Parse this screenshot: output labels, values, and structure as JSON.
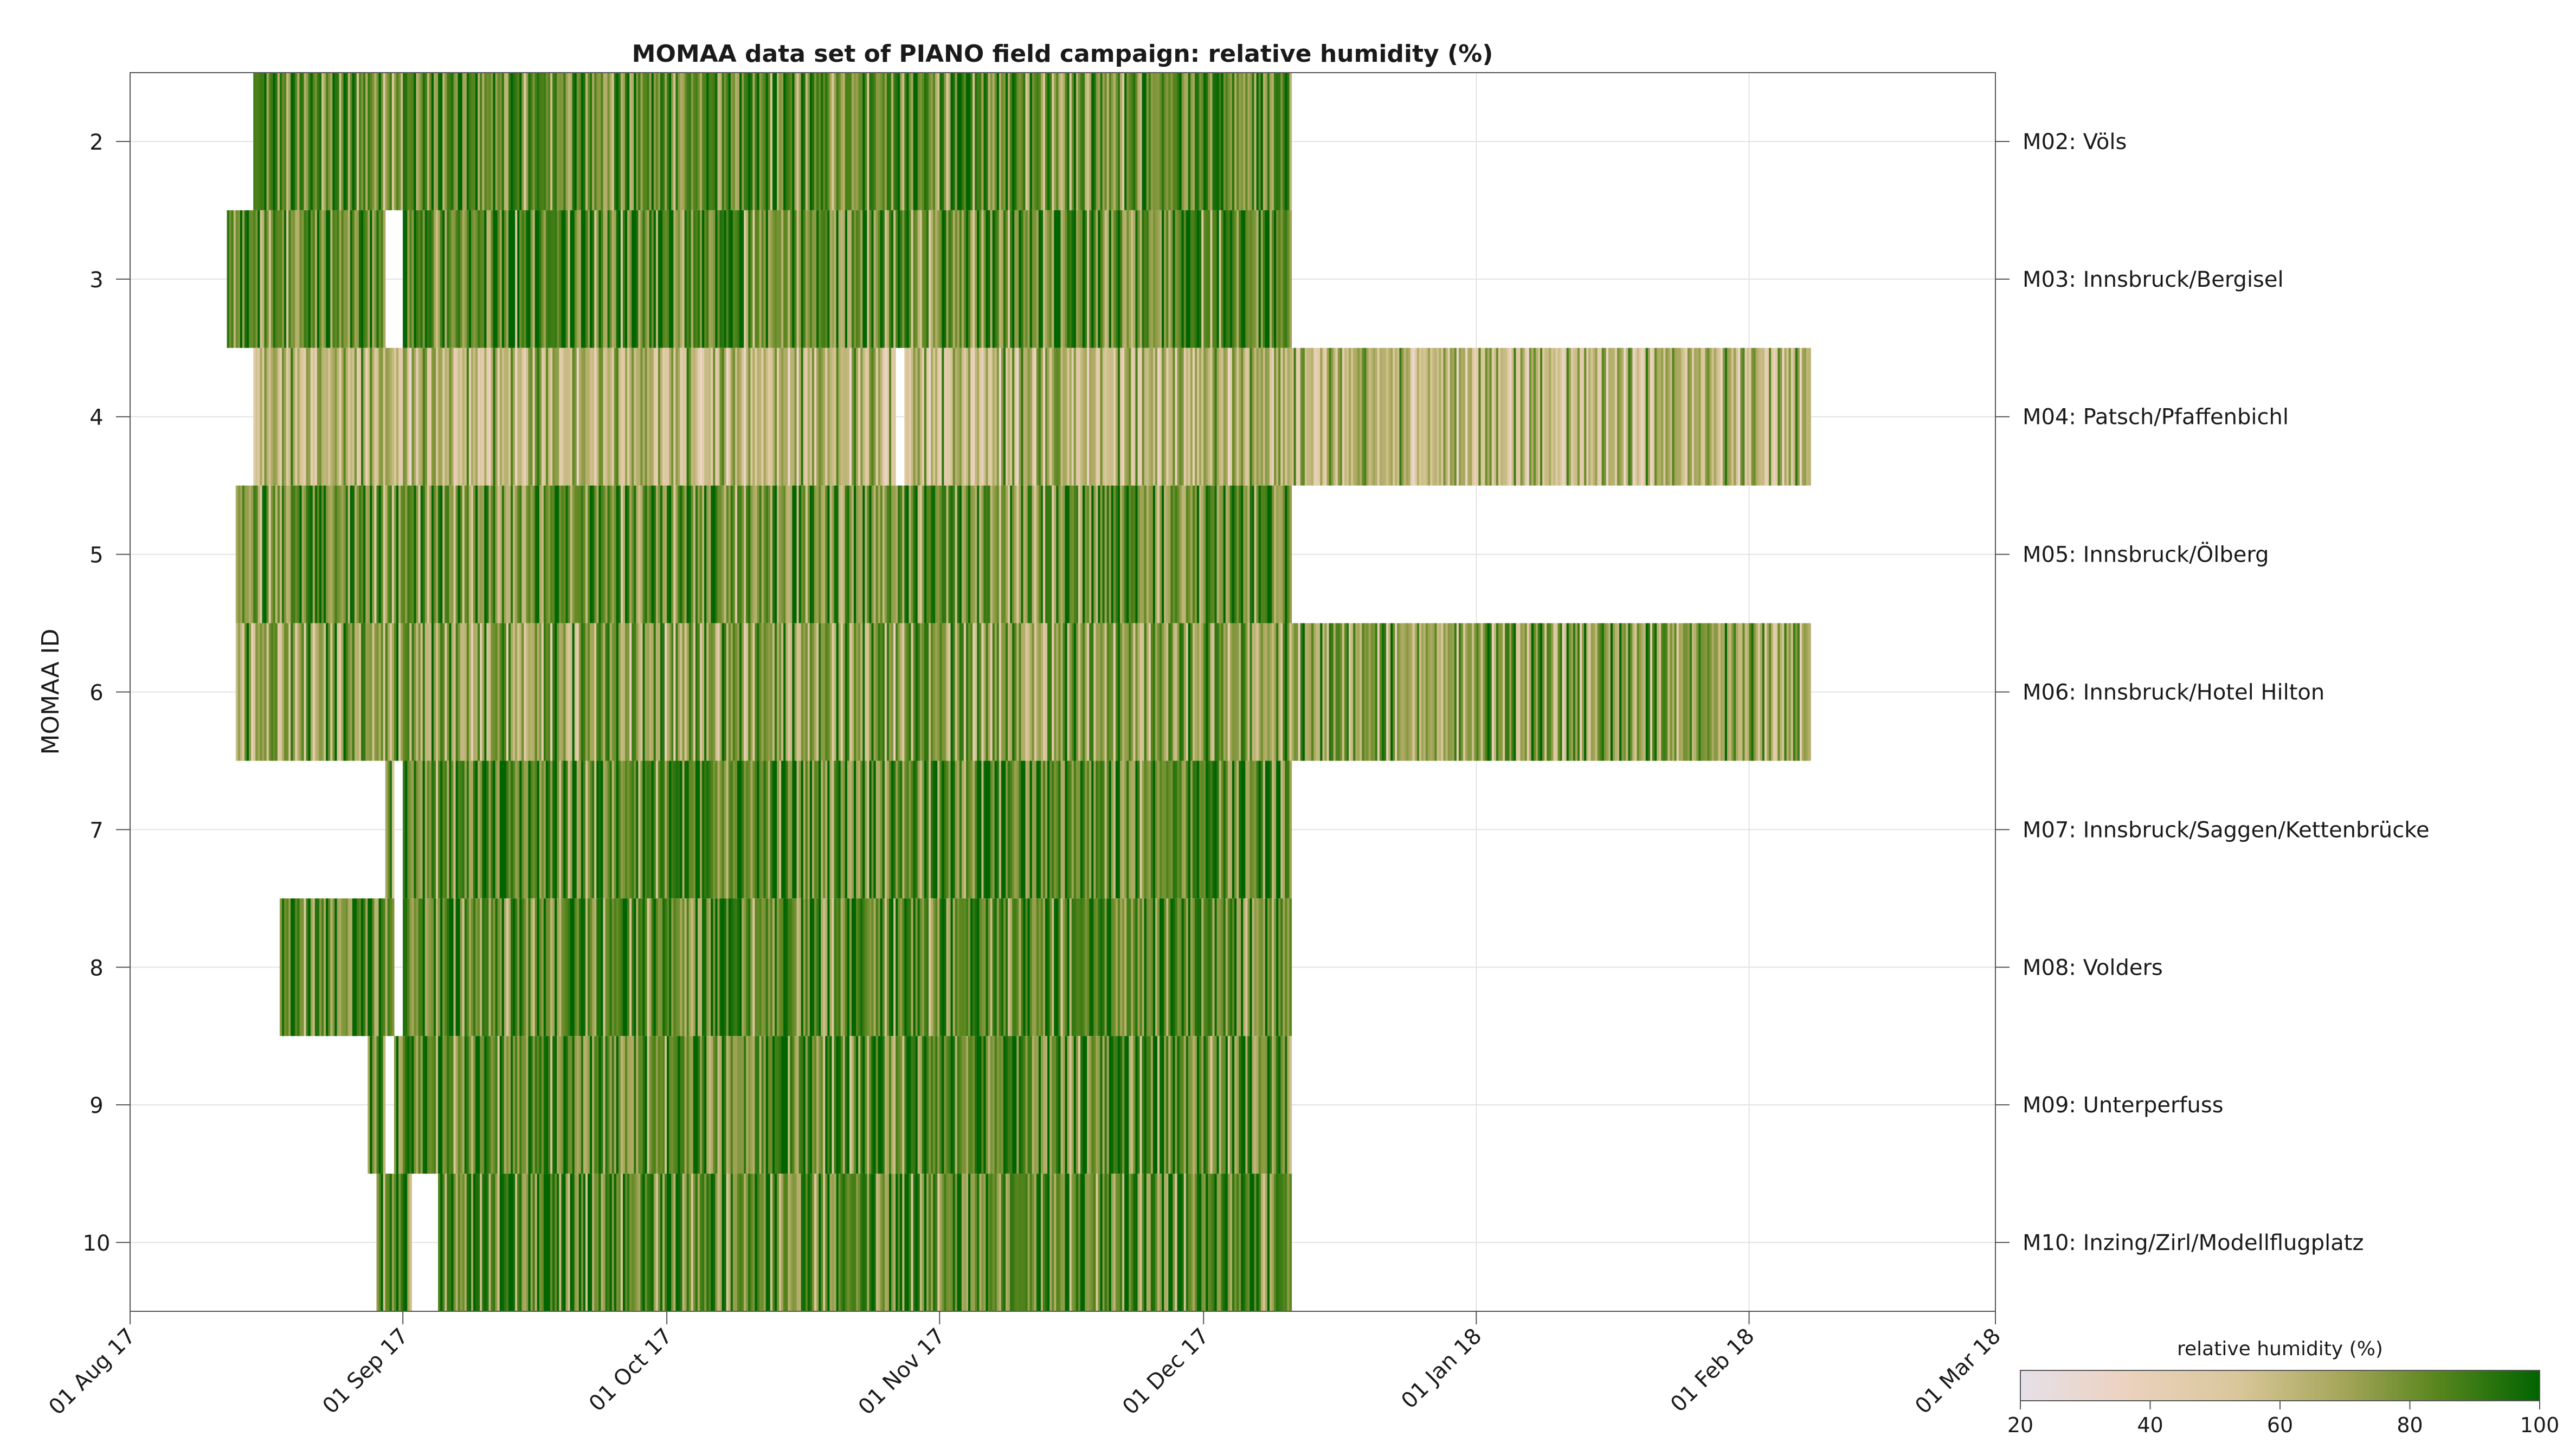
{
  "chart_data": {
    "type": "heatmap",
    "title": "MOMAA data set of PIANO field campaign: relative humidity (%)",
    "ylabel": "MOMAA ID",
    "xlabel": "",
    "x_range": [
      "2017-08-01",
      "2018-03-01"
    ],
    "x_ticks": [
      {
        "date": "2017-08-01",
        "label": "01 Aug 17"
      },
      {
        "date": "2017-09-01",
        "label": "01 Sep 17"
      },
      {
        "date": "2017-10-01",
        "label": "01 Oct 17"
      },
      {
        "date": "2017-11-01",
        "label": "01 Nov 17"
      },
      {
        "date": "2017-12-01",
        "label": "01 Dec 17"
      },
      {
        "date": "2018-01-01",
        "label": "01 Jan 18"
      },
      {
        "date": "2018-02-01",
        "label": "01 Feb 18"
      },
      {
        "date": "2018-03-01",
        "label": "01 Mar 18"
      }
    ],
    "y_ticks": [
      2,
      3,
      4,
      5,
      6,
      7,
      8,
      9,
      10
    ],
    "y_range": [
      1.5,
      10.5
    ],
    "grid": true,
    "colorbar": {
      "label": "relative humidity (%)",
      "min": 20,
      "max": 100,
      "ticks": [
        20,
        40,
        60,
        80,
        100
      ],
      "colors": [
        "#e6e0e8",
        "#ecd2c0",
        "#d9c79a",
        "#a5a65a",
        "#5a861e",
        "#006400"
      ]
    },
    "stations": [
      {
        "id": 2,
        "name": "M02: Völs",
        "start": "2017-08-15",
        "end": "2017-12-11",
        "base_rh": 82,
        "gaps": []
      },
      {
        "id": 3,
        "name": "M03: Innsbruck/Bergisel",
        "start": "2017-08-12",
        "end": "2017-12-11",
        "base_rh": 83,
        "gaps": [
          [
            "2017-08-30",
            "2017-09-01"
          ]
        ]
      },
      {
        "id": 4,
        "name": "M04: Patsch/Pfaffenbichl",
        "start": "2017-08-15",
        "end": "2018-02-08",
        "base_rh": 62,
        "gaps": [
          [
            "2017-10-27",
            "2017-10-28"
          ]
        ]
      },
      {
        "id": 5,
        "name": "M05: Innsbruck/Ölberg",
        "start": "2017-08-13",
        "end": "2017-12-11",
        "base_rh": 80,
        "gaps": []
      },
      {
        "id": 6,
        "name": "M06: Innsbruck/Hotel Hilton",
        "start": "2017-08-13",
        "end": "2018-02-08",
        "base_rh": 72,
        "gaps": []
      },
      {
        "id": 7,
        "name": "M07: Innsbruck/Saggen/Kettenbrücke",
        "start": "2017-08-30",
        "end": "2017-12-11",
        "base_rh": 85,
        "gaps": [
          [
            "2017-08-31",
            "2017-09-01"
          ]
        ]
      },
      {
        "id": 8,
        "name": "M08: Volders",
        "start": "2017-08-18",
        "end": "2017-12-11",
        "base_rh": 83,
        "gaps": [
          [
            "2017-08-31",
            "2017-09-01"
          ]
        ]
      },
      {
        "id": 9,
        "name": "M09: Unterperfuss",
        "start": "2017-08-28",
        "end": "2017-12-11",
        "base_rh": 84,
        "gaps": [
          [
            "2017-08-30",
            "2017-08-31"
          ]
        ]
      },
      {
        "id": 10,
        "name": "M10: Inzing/Zirl/Modellflugplatz",
        "start": "2017-08-29",
        "end": "2017-12-11",
        "base_rh": 84,
        "gaps": [
          [
            "2017-09-02",
            "2017-09-05"
          ]
        ]
      }
    ]
  }
}
